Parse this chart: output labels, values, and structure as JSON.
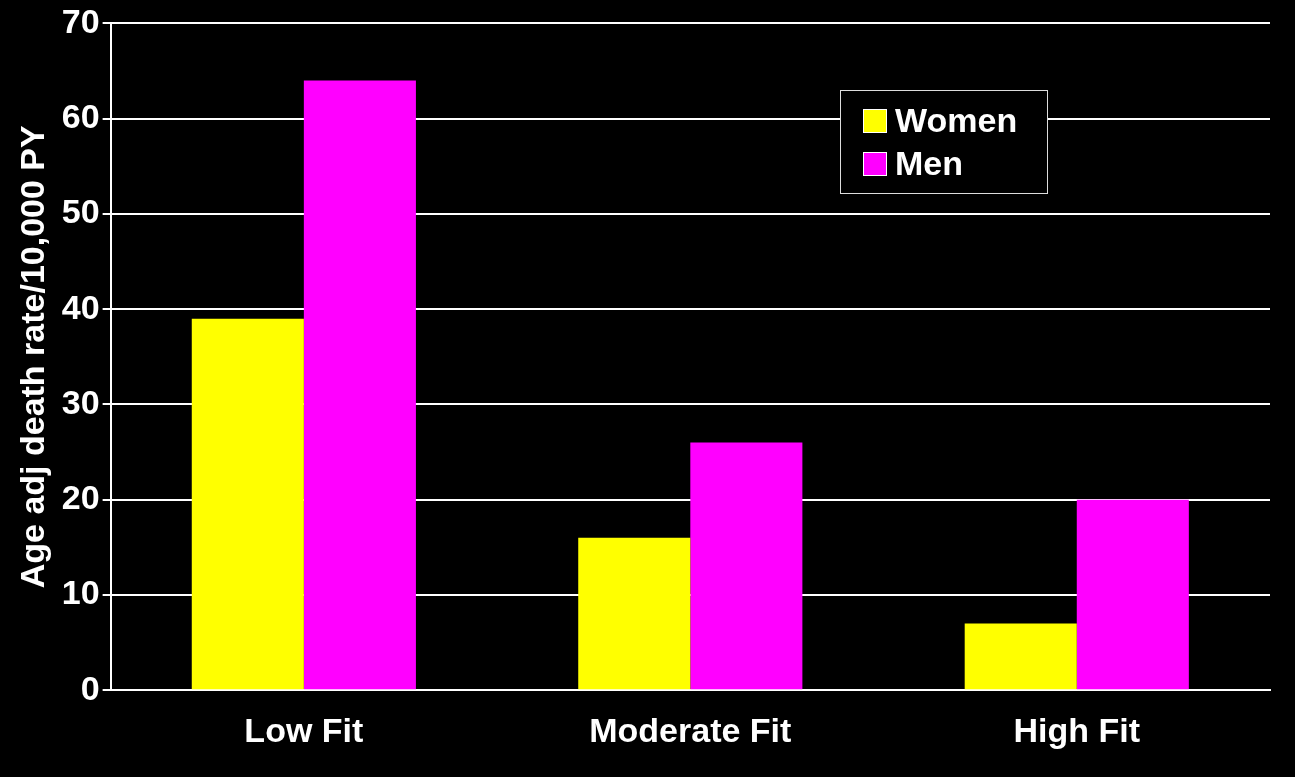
{
  "chart_data": {
    "type": "bar",
    "ylabel": "Age adj death rate/10,000 PY",
    "categories": [
      "Low Fit",
      "Moderate Fit",
      "High Fit"
    ],
    "series": [
      {
        "name": "Women",
        "color": "#ffff00",
        "values": [
          39,
          16,
          7
        ]
      },
      {
        "name": "Men",
        "color": "#ff00ff",
        "values": [
          64,
          26,
          20
        ]
      }
    ],
    "ylim": [
      0,
      70
    ],
    "yticks": [
      0,
      10,
      20,
      30,
      40,
      50,
      60,
      70
    ],
    "grid": "y",
    "legend": "top right"
  }
}
